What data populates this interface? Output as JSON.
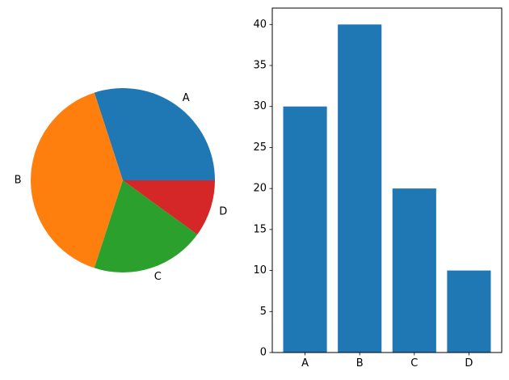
{
  "chart_data": [
    {
      "type": "pie",
      "categories": [
        "A",
        "B",
        "C",
        "D"
      ],
      "values": [
        30,
        40,
        20,
        10
      ],
      "colors": [
        "#1f77b4",
        "#ff7f0e",
        "#2ca02c",
        "#d62728"
      ]
    },
    {
      "type": "bar",
      "categories": [
        "A",
        "B",
        "C",
        "D"
      ],
      "values": [
        30,
        40,
        20,
        10
      ],
      "color": "#1f77b4",
      "ylim": [
        0,
        42
      ],
      "yticks": [
        0,
        5,
        10,
        15,
        20,
        25,
        30,
        35,
        40
      ],
      "grid": false
    }
  ]
}
